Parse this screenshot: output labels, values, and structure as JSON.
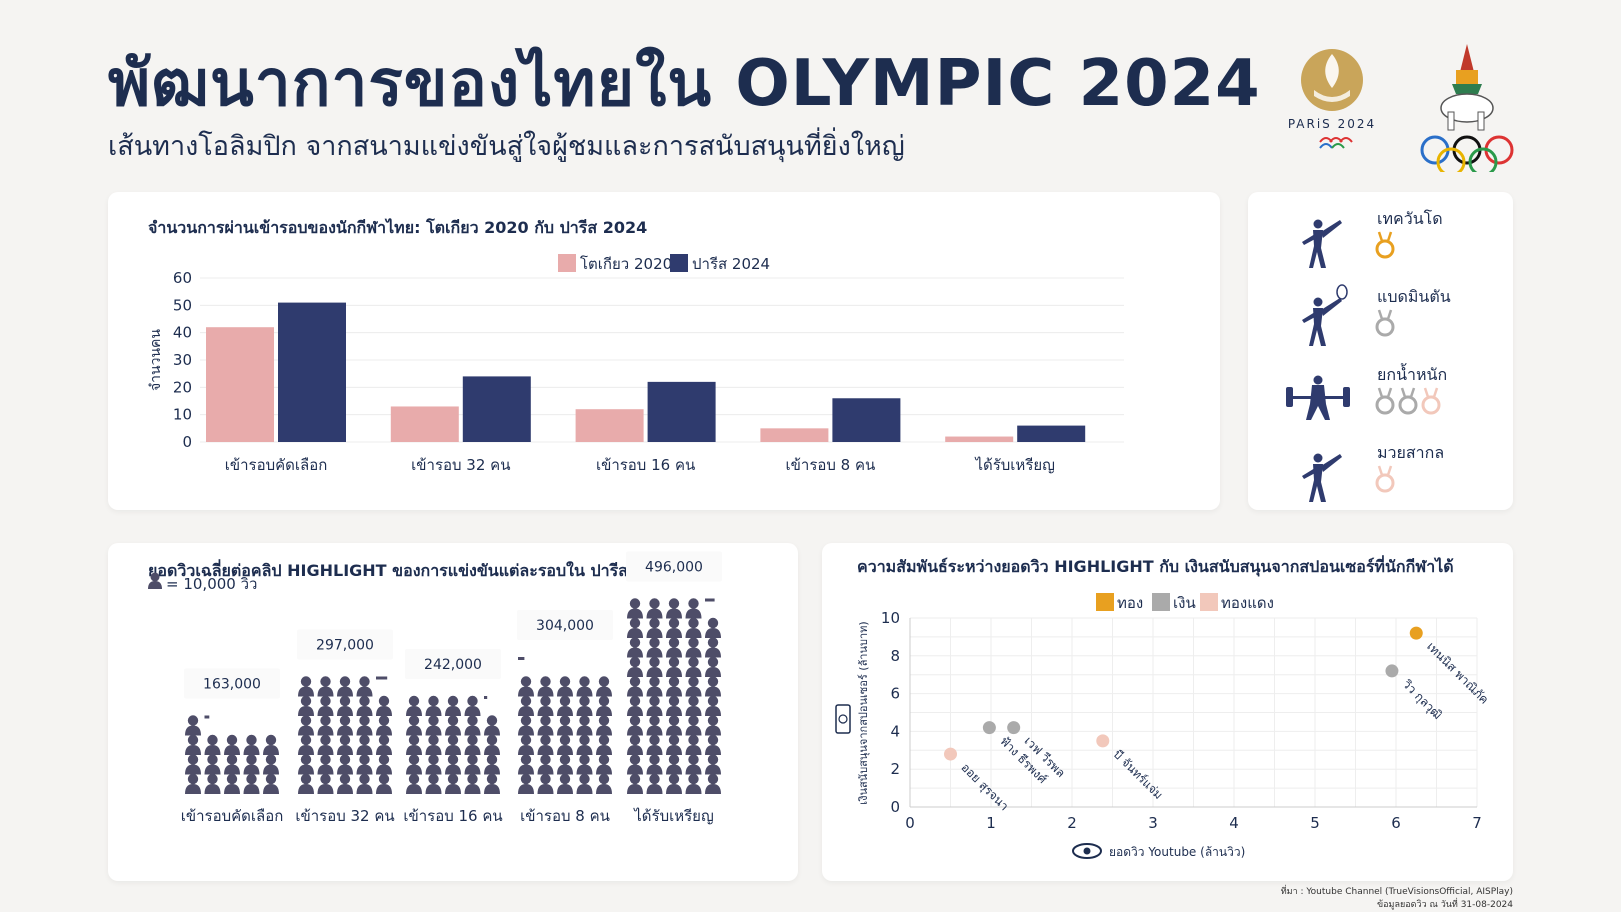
{
  "header": {
    "title": "พัฒนาการของไทยใน OLYMPIC 2024",
    "subtitle": "เส้นทางโอลิมปิก จากสนามแข่งขันสู่ใจผู้ชมและการสนับสนุนที่ยิ่งใหญ่",
    "paris_logo_text": "PARiS 2024"
  },
  "colors": {
    "tokyo": "#e8abab",
    "paris": "#2f3b6e",
    "gold": "#e8a020",
    "silver": "#aaaaaa",
    "bronze": "#f2c8bb",
    "navy": "#1d2d4f",
    "people": "#4e4d68"
  },
  "chart_data": [
    {
      "type": "bar",
      "title": "จำนวนการผ่านเข้ารอบของนักกีฬาไทย: โตเกียว 2020 กับ ปารีส 2024",
      "categories": [
        "เข้ารอบคัดเลือก",
        "เข้ารอบ 32 คน",
        "เข้ารอบ 16 คน",
        "เข้ารอบ 8 คน",
        "ได้รับเหรียญ"
      ],
      "series": [
        {
          "name": "โตเกียว 2020",
          "values": [
            42,
            13,
            12,
            5,
            2
          ]
        },
        {
          "name": "ปารีส 2024",
          "values": [
            51,
            24,
            22,
            16,
            6
          ]
        }
      ],
      "ylabel": "จำนวนคน",
      "xlabel": "",
      "ylim": [
        0,
        60
      ],
      "yticks": [
        0,
        10,
        20,
        30,
        40,
        50,
        60
      ],
      "legend": "top-center",
      "grid": true
    },
    {
      "type": "bar",
      "title": "ยอดวิวเฉลี่ยต่อคลิป HIGHLIGHT ของการแข่งขันแต่ละรอบใน ปารีส 2024",
      "legend_text": "= 10,000 วิว",
      "unit": 10000,
      "categories": [
        "เข้ารอบคัดเลือก",
        "เข้ารอบ 32 คน",
        "เข้ารอบ 16 คน",
        "เข้ารอบ 8 คน",
        "ได้รับเหรียญ"
      ],
      "values": [
        163000,
        297000,
        242000,
        304000,
        496000
      ],
      "value_labels": [
        "163,000",
        "297,000",
        "242,000",
        "304,000",
        "496,000"
      ]
    },
    {
      "type": "scatter",
      "title": "ความสัมพันธ์ระหว่างยอดวิว HIGHLIGHT กับ เงินสนับสนุนจากสปอนเซอร์ที่นักกีฬาได้",
      "xlabel": "ยอดวิว Youtube (ล้านวิว)",
      "ylabel": "เงินสนับสนุนจากสปอนเซอร์ (ล้านบาท)",
      "xlim": [
        0,
        7
      ],
      "ylim": [
        0,
        10
      ],
      "xticks": [
        0,
        1,
        2,
        3,
        4,
        5,
        6,
        7
      ],
      "yticks": [
        0,
        2,
        4,
        6,
        8,
        10
      ],
      "legend": [
        {
          "name": "ทอง",
          "color": "#e8a020"
        },
        {
          "name": "เงิน",
          "color": "#aaaaaa"
        },
        {
          "name": "ทองแดง",
          "color": "#f2c8bb"
        }
      ],
      "points": [
        {
          "label": "เทนนิส พาณิภัค",
          "x": 6.25,
          "y": 9.2,
          "medal": "gold"
        },
        {
          "label": "วิว กุลวุฒิ",
          "x": 5.95,
          "y": 7.2,
          "medal": "silver"
        },
        {
          "label": "ฟ้าง ธีรพงศ์",
          "x": 0.98,
          "y": 4.2,
          "medal": "silver"
        },
        {
          "label": "เวฟ วีรพล",
          "x": 1.28,
          "y": 4.2,
          "medal": "silver"
        },
        {
          "label": "บี จันทร์แจ่ม",
          "x": 2.38,
          "y": 3.5,
          "medal": "bronze"
        },
        {
          "label": "ออย สุรจนา",
          "x": 0.5,
          "y": 2.8,
          "medal": "bronze"
        }
      ]
    }
  ],
  "medals_panel": [
    {
      "sport": "เทควันโด",
      "icon": "taekwondo-icon",
      "medals": [
        "gold"
      ]
    },
    {
      "sport": "แบดมินตัน",
      "icon": "badminton-icon",
      "medals": [
        "silver"
      ]
    },
    {
      "sport": "ยกน้ำหนัก",
      "icon": "weightlifting-icon",
      "medals": [
        "silver",
        "silver",
        "bronze"
      ]
    },
    {
      "sport": "มวยสากล",
      "icon": "boxing-icon",
      "medals": [
        "bronze"
      ]
    }
  ],
  "footnote": {
    "source": "ที่มา : Youtube Channel (TrueVisionsOfficial, AISPlay)",
    "date": "ข้อมูลยอดวิว ณ วันที่ 31-08-2024"
  }
}
